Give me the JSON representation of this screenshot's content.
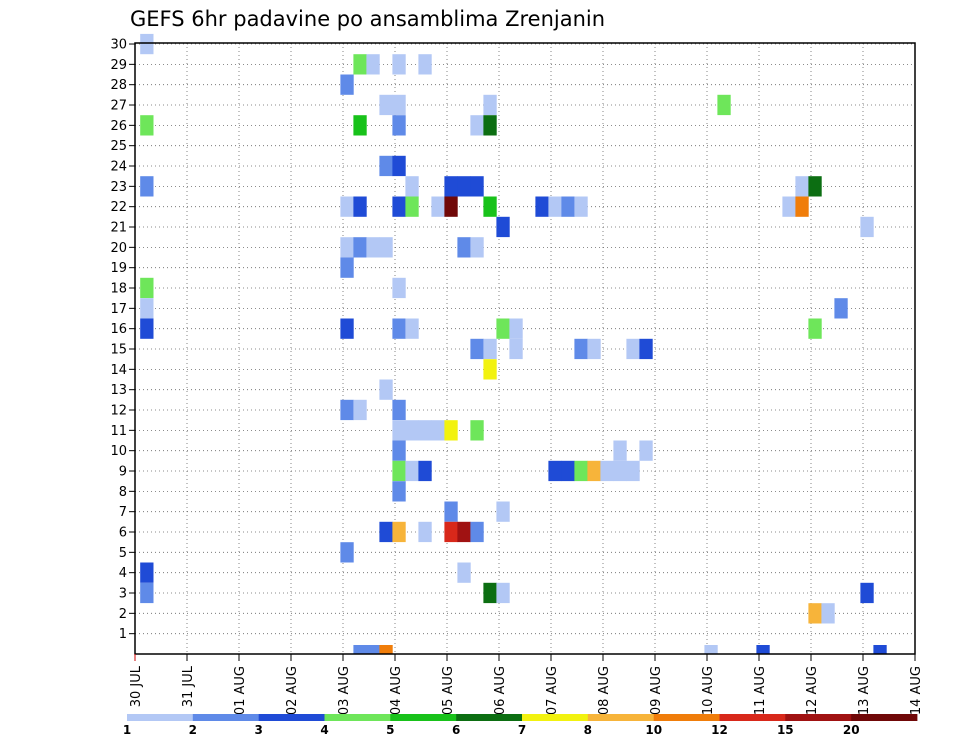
{
  "chart_data": {
    "type": "heatmap",
    "title": "GEFS 6hr padavine po ansamblima Zrenjanin",
    "x_tick_labels": [
      "30 JUL",
      "31 JUL",
      "01 AUG",
      "02 AUG",
      "03 AUG",
      "04 AUG",
      "05 AUG",
      "06 AUG",
      "07 AUG",
      "08 AUG",
      "09 AUG",
      "10 AUG",
      "11 AUG",
      "12 AUG",
      "13 AUG",
      "14 AUG"
    ],
    "xlim": [
      0,
      15
    ],
    "x_unit": "days since 30 JUL 00Z",
    "ylim": [
      0,
      30
    ],
    "y_tick_labels": [
      "1",
      "2",
      "3",
      "4",
      "5",
      "6",
      "7",
      "8",
      "9",
      "10",
      "11",
      "12",
      "13",
      "14",
      "15",
      "16",
      "17",
      "18",
      "19",
      "20",
      "21",
      "22",
      "23",
      "24",
      "25",
      "26",
      "27",
      "28",
      "29",
      "30"
    ],
    "grid": true,
    "colorbar": {
      "labels": [
        "1",
        "2",
        "3",
        "4",
        "5",
        "6",
        "7",
        "8",
        "10",
        "12",
        "15",
        "20"
      ],
      "colors": [
        "#b3c8f5",
        "#5f8ae8",
        "#1f4bd6",
        "#6ee65a",
        "#18c21a",
        "#0c6e12",
        "#f2f20f",
        "#f7b43a",
        "#f07d0a",
        "#d8281a",
        "#a01212",
        "#700808"
      ]
    },
    "cells": [
      {
        "m": 30,
        "x": 0.1,
        "c": 0
      },
      {
        "m": 29,
        "x": 4.2,
        "c": 3
      },
      {
        "m": 29,
        "x": 4.45,
        "c": 0
      },
      {
        "m": 29,
        "x": 4.95,
        "c": 0
      },
      {
        "m": 29,
        "x": 5.45,
        "c": 0
      },
      {
        "m": 28,
        "x": 3.95,
        "c": 1
      },
      {
        "m": 27,
        "x": 4.7,
        "c": 0
      },
      {
        "m": 27,
        "x": 4.95,
        "c": 0
      },
      {
        "m": 27,
        "x": 6.7,
        "c": 0
      },
      {
        "m": 27,
        "x": 11.2,
        "c": 3
      },
      {
        "m": 26,
        "x": 0.1,
        "c": 3
      },
      {
        "m": 26,
        "x": 4.2,
        "c": 4
      },
      {
        "m": 26,
        "x": 4.95,
        "c": 1
      },
      {
        "m": 26,
        "x": 6.45,
        "c": 0
      },
      {
        "m": 26,
        "x": 6.7,
        "c": 5
      },
      {
        "m": 24,
        "x": 4.7,
        "c": 1
      },
      {
        "m": 24,
        "x": 4.95,
        "c": 2
      },
      {
        "m": 23,
        "x": 0.1,
        "c": 1
      },
      {
        "m": 23,
        "x": 5.2,
        "c": 0
      },
      {
        "m": 23,
        "x": 5.95,
        "c": 2
      },
      {
        "m": 23,
        "x": 6.2,
        "c": 2
      },
      {
        "m": 23,
        "x": 6.45,
        "c": 2
      },
      {
        "m": 23,
        "x": 12.7,
        "c": 0
      },
      {
        "m": 23,
        "x": 12.95,
        "c": 5
      },
      {
        "m": 22,
        "x": 3.95,
        "c": 0
      },
      {
        "m": 22,
        "x": 4.2,
        "c": 2
      },
      {
        "m": 22,
        "x": 4.95,
        "c": 2
      },
      {
        "m": 22,
        "x": 5.2,
        "c": 3
      },
      {
        "m": 22,
        "x": 5.7,
        "c": 0
      },
      {
        "m": 22,
        "x": 5.95,
        "c": 11
      },
      {
        "m": 22,
        "x": 6.7,
        "c": 4
      },
      {
        "m": 22,
        "x": 7.7,
        "c": 2
      },
      {
        "m": 22,
        "x": 7.95,
        "c": 0
      },
      {
        "m": 22,
        "x": 8.2,
        "c": 1
      },
      {
        "m": 22,
        "x": 8.45,
        "c": 0
      },
      {
        "m": 22,
        "x": 12.45,
        "c": 0
      },
      {
        "m": 22,
        "x": 12.7,
        "c": 8
      },
      {
        "m": 21,
        "x": 6.95,
        "c": 2
      },
      {
        "m": 21,
        "x": 13.95,
        "c": 0
      },
      {
        "m": 20,
        "x": 3.95,
        "c": 0
      },
      {
        "m": 20,
        "x": 4.2,
        "c": 1
      },
      {
        "m": 20,
        "x": 4.45,
        "c": 0
      },
      {
        "m": 20,
        "x": 4.7,
        "c": 0
      },
      {
        "m": 20,
        "x": 6.2,
        "c": 1
      },
      {
        "m": 20,
        "x": 6.45,
        "c": 0
      },
      {
        "m": 19,
        "x": 3.95,
        "c": 1
      },
      {
        "m": 18,
        "x": 0.1,
        "c": 3
      },
      {
        "m": 18,
        "x": 4.95,
        "c": 0
      },
      {
        "m": 17,
        "x": 0.1,
        "c": 0
      },
      {
        "m": 17,
        "x": 13.45,
        "c": 1
      },
      {
        "m": 16,
        "x": 0.1,
        "c": 2
      },
      {
        "m": 16,
        "x": 3.95,
        "c": 2
      },
      {
        "m": 16,
        "x": 4.95,
        "c": 1
      },
      {
        "m": 16,
        "x": 5.2,
        "c": 0
      },
      {
        "m": 16,
        "x": 6.95,
        "c": 3
      },
      {
        "m": 16,
        "x": 7.2,
        "c": 0
      },
      {
        "m": 16,
        "x": 12.95,
        "c": 3
      },
      {
        "m": 15,
        "x": 6.45,
        "c": 1
      },
      {
        "m": 15,
        "x": 6.7,
        "c": 0
      },
      {
        "m": 15,
        "x": 7.2,
        "c": 0
      },
      {
        "m": 15,
        "x": 8.45,
        "c": 1
      },
      {
        "m": 15,
        "x": 8.7,
        "c": 0
      },
      {
        "m": 15,
        "x": 9.45,
        "c": 0
      },
      {
        "m": 15,
        "x": 9.7,
        "c": 2
      },
      {
        "m": 14,
        "x": 6.7,
        "c": 6
      },
      {
        "m": 13,
        "x": 4.7,
        "c": 0
      },
      {
        "m": 12,
        "x": 3.95,
        "c": 1
      },
      {
        "m": 12,
        "x": 4.2,
        "c": 0
      },
      {
        "m": 12,
        "x": 4.95,
        "c": 1
      },
      {
        "m": 11,
        "x": 4.95,
        "c": 0
      },
      {
        "m": 11,
        "x": 5.2,
        "c": 0
      },
      {
        "m": 11,
        "x": 5.45,
        "c": 0
      },
      {
        "m": 11,
        "x": 5.7,
        "c": 0
      },
      {
        "m": 11,
        "x": 5.95,
        "c": 6
      },
      {
        "m": 11,
        "x": 6.45,
        "c": 3
      },
      {
        "m": 10,
        "x": 4.95,
        "c": 1
      },
      {
        "m": 10,
        "x": 9.2,
        "c": 0
      },
      {
        "m": 10,
        "x": 9.7,
        "c": 0
      },
      {
        "m": 9,
        "x": 4.95,
        "c": 3
      },
      {
        "m": 9,
        "x": 5.2,
        "c": 0
      },
      {
        "m": 9,
        "x": 5.45,
        "c": 2
      },
      {
        "m": 9,
        "x": 7.95,
        "c": 2
      },
      {
        "m": 9,
        "x": 8.2,
        "c": 2
      },
      {
        "m": 9,
        "x": 8.45,
        "c": 3
      },
      {
        "m": 9,
        "x": 8.7,
        "c": 7
      },
      {
        "m": 9,
        "x": 8.95,
        "c": 0
      },
      {
        "m": 9,
        "x": 9.2,
        "c": 0
      },
      {
        "m": 9,
        "x": 9.45,
        "c": 0
      },
      {
        "m": 8,
        "x": 4.95,
        "c": 1
      },
      {
        "m": 7,
        "x": 5.95,
        "c": 1
      },
      {
        "m": 7,
        "x": 6.95,
        "c": 0
      },
      {
        "m": 6,
        "x": 4.7,
        "c": 2
      },
      {
        "m": 6,
        "x": 4.95,
        "c": 7
      },
      {
        "m": 6,
        "x": 5.45,
        "c": 0
      },
      {
        "m": 6,
        "x": 5.95,
        "c": 9
      },
      {
        "m": 6,
        "x": 6.2,
        "c": 10
      },
      {
        "m": 6,
        "x": 6.45,
        "c": 1
      },
      {
        "m": 5,
        "x": 3.95,
        "c": 1
      },
      {
        "m": 4,
        "x": 0.1,
        "c": 2
      },
      {
        "m": 4,
        "x": 6.2,
        "c": 0
      },
      {
        "m": 3,
        "x": 0.1,
        "c": 1
      },
      {
        "m": 3,
        "x": 6.7,
        "c": 5
      },
      {
        "m": 3,
        "x": 6.95,
        "c": 0
      },
      {
        "m": 3,
        "x": 13.95,
        "c": 2
      },
      {
        "m": 2,
        "x": 12.95,
        "c": 7
      },
      {
        "m": 2,
        "x": 13.2,
        "c": 0
      },
      {
        "m": 0,
        "x": 4.2,
        "c": 1
      },
      {
        "m": 0,
        "x": 4.45,
        "c": 1
      },
      {
        "m": 0,
        "x": 4.7,
        "c": 8
      },
      {
        "m": 0,
        "x": 10.95,
        "c": 0
      },
      {
        "m": 0,
        "x": 11.95,
        "c": 2
      },
      {
        "m": 0,
        "x": 14.2,
        "c": 2
      }
    ]
  }
}
